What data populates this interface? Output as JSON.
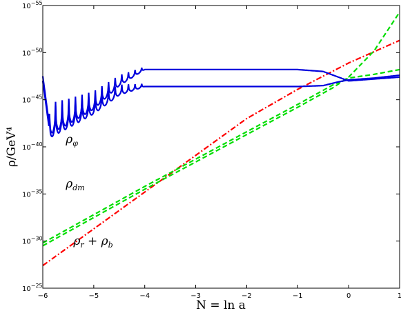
{
  "chart_data": {
    "type": "line",
    "title": "",
    "xlabel": "N = ln a",
    "ylabel": "ρ/GeV⁴",
    "xlim": [
      -6,
      1
    ],
    "ylim_exponent": [
      -55,
      -25
    ],
    "y_scale": "log",
    "grid": false,
    "x_ticks": [
      "−6",
      "−5",
      "−4",
      "−3",
      "−2",
      "−1",
      "0",
      "1"
    ],
    "y_ticks": [
      {
        "base": "10",
        "exp": "−25",
        "value": -25
      },
      {
        "base": "10",
        "exp": "−30",
        "value": -30
      },
      {
        "base": "10",
        "exp": "−35",
        "value": -35
      },
      {
        "base": "10",
        "exp": "−40",
        "value": -40
      },
      {
        "base": "10",
        "exp": "−45",
        "value": -45
      },
      {
        "base": "10",
        "exp": "−50",
        "value": -50
      },
      {
        "base": "10",
        "exp": "−55",
        "value": -55
      }
    ],
    "annotations": [
      {
        "text": "ρ",
        "sub": "r",
        "mid": " + ρ",
        "sub2": "b",
        "series": "rho_rb"
      },
      {
        "text": "ρ",
        "sub": "dm",
        "series": "rho_dm"
      },
      {
        "text": "ρ",
        "sub": "φ",
        "series": "rho_phi"
      }
    ],
    "series": [
      {
        "key": "rho_rb",
        "style": "dashdot",
        "color": "#ff0000",
        "x": [
          -6,
          -5,
          -4,
          -3,
          -2,
          -1,
          0,
          1
        ],
        "log10_y": [
          -27.4,
          -31.3,
          -35.2,
          -39.1,
          -43.0,
          -46.1,
          -48.9,
          -51.3
        ]
      },
      {
        "key": "rho_dm_a",
        "style": "dashed",
        "color": "#00dd00",
        "x": [
          -6,
          -5,
          -4,
          -3,
          -2,
          -1,
          -0.3,
          0,
          0.5,
          1
        ],
        "log10_y": [
          -29.5,
          -32.5,
          -35.5,
          -38.4,
          -41.3,
          -44.2,
          -46.3,
          -47.4,
          -50.2,
          -54.3
        ]
      },
      {
        "key": "rho_dm_b",
        "style": "dashed",
        "color": "#00dd00",
        "x": [
          -6,
          -5,
          -4,
          -3,
          -2,
          -1,
          -0.3,
          0,
          0.5,
          1
        ],
        "log10_y": [
          -29.8,
          -32.8,
          -35.8,
          -38.7,
          -41.6,
          -44.5,
          -46.6,
          -47.3,
          -47.7,
          -48.2
        ]
      },
      {
        "key": "rho_phi_upper",
        "style": "solid",
        "color": "#0000dd",
        "x": [
          -6,
          -5.85,
          -5.5,
          -5,
          -4.5,
          -4.0,
          -3,
          -2,
          -1,
          -0.5,
          -0.2,
          0,
          0.5,
          1
        ],
        "log10_y": [
          -47.0,
          -41.0,
          -42.0,
          -43.5,
          -45.5,
          -46.4,
          -46.4,
          -46.4,
          -46.4,
          -46.5,
          -46.9,
          -47.1,
          -47.3,
          -47.6
        ],
        "oscillation_end": -4.0
      },
      {
        "key": "rho_phi_lower",
        "style": "solid",
        "color": "#0000dd",
        "x": [
          -6,
          -5.85,
          -5.5,
          -5,
          -4.5,
          -4.0,
          -3,
          -2,
          -1,
          -0.5,
          -0.2,
          0,
          0.5,
          1
        ],
        "log10_y": [
          -47.5,
          -41.4,
          -42.4,
          -44.0,
          -46.5,
          -48.2,
          -48.2,
          -48.2,
          -48.2,
          -48.0,
          -47.4,
          -47.0,
          -47.2,
          -47.4
        ],
        "oscillation_end": -4.0
      }
    ]
  }
}
